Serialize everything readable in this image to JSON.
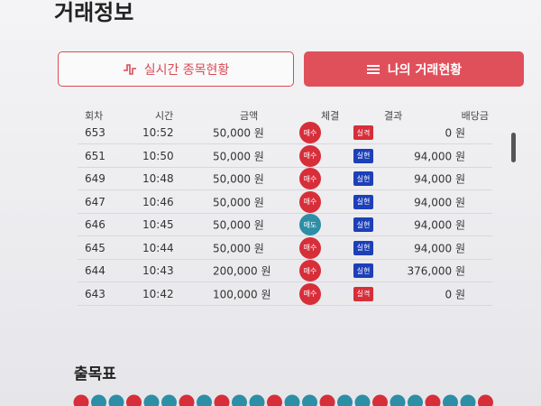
{
  "header": {
    "title": "거래정보"
  },
  "tabs": [
    "실시간 종목현황",
    "나의 거래현황"
  ],
  "table": {
    "columns": [
      "회차",
      "시간",
      "금액",
      "체결",
      "결과",
      "배당금"
    ],
    "rows": [
      [
        "653",
        "10:52",
        "50,000 원",
        "매수",
        "실격",
        "0 원"
      ],
      [
        "651",
        "10:50",
        "50,000 원",
        "매수",
        "실현",
        "94,000 원"
      ],
      [
        "649",
        "10:48",
        "50,000 원",
        "매수",
        "실현",
        "94,000 원"
      ],
      [
        "647",
        "10:46",
        "50,000 원",
        "매수",
        "실현",
        "94,000 원"
      ],
      [
        "646",
        "10:45",
        "50,000 원",
        "매도",
        "실현",
        "94,000 원"
      ],
      [
        "645",
        "10:44",
        "50,000 원",
        "매수",
        "실현",
        "94,000 원"
      ],
      [
        "644",
        "10:43",
        "200,000 원",
        "매수",
        "실현",
        "376,000 원"
      ],
      [
        "643",
        "10:42",
        "100,000 원",
        "매수",
        "실격",
        "0 원"
      ]
    ]
  },
  "section": {
    "title": "출목표"
  }
}
